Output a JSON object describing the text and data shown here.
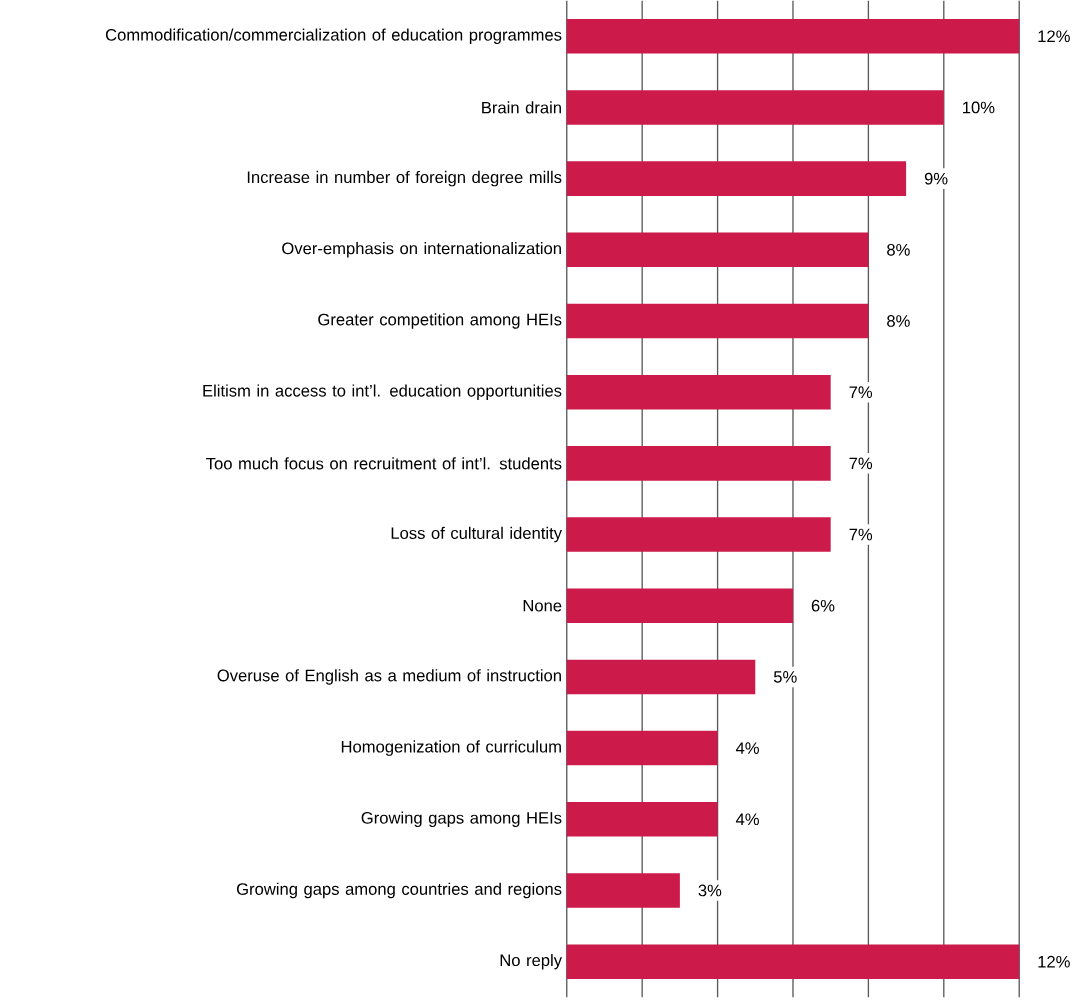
{
  "chart_data": {
    "type": "bar",
    "orientation": "horizontal",
    "categories": [
      "Commodification/commercialization of education programmes",
      "Brain drain",
      "Increase in number of foreign degree mills",
      "Over-emphasis on internationalization",
      "Greater competition among HEIs",
      "Elitism in access to int’l. education opportunities",
      "Too much focus on recruitment of int’l. students",
      "Loss of cultural identity",
      "None",
      "Overuse of English as a medium of instruction",
      "Homogenization of curriculum",
      "Growing gaps among HEIs",
      "Growing gaps among countries and regions",
      "No reply"
    ],
    "values": [
      12,
      10,
      9,
      8,
      8,
      7,
      7,
      7,
      6,
      5,
      4,
      4,
      3,
      12
    ],
    "value_labels": [
      "12%",
      "10%",
      "9%",
      "8%",
      "8%",
      "7%",
      "7%",
      "7%",
      "6%",
      "5%",
      "4%",
      "4%",
      "3%",
      "12%"
    ],
    "color": "#cc1a4a",
    "xlim": [
      0,
      12
    ],
    "xticks": [
      {
        "value": 0,
        "label": null
      },
      {
        "value": 2,
        "label": null
      },
      {
        "value": 4,
        "label": null
      },
      {
        "value": 6,
        "label": null
      },
      {
        "value": 8,
        "label": null
      },
      {
        "value": 10,
        "label": null
      },
      {
        "value": 12,
        "label": null
      }
    ],
    "grid": "x",
    "tick_labels": "y"
  }
}
